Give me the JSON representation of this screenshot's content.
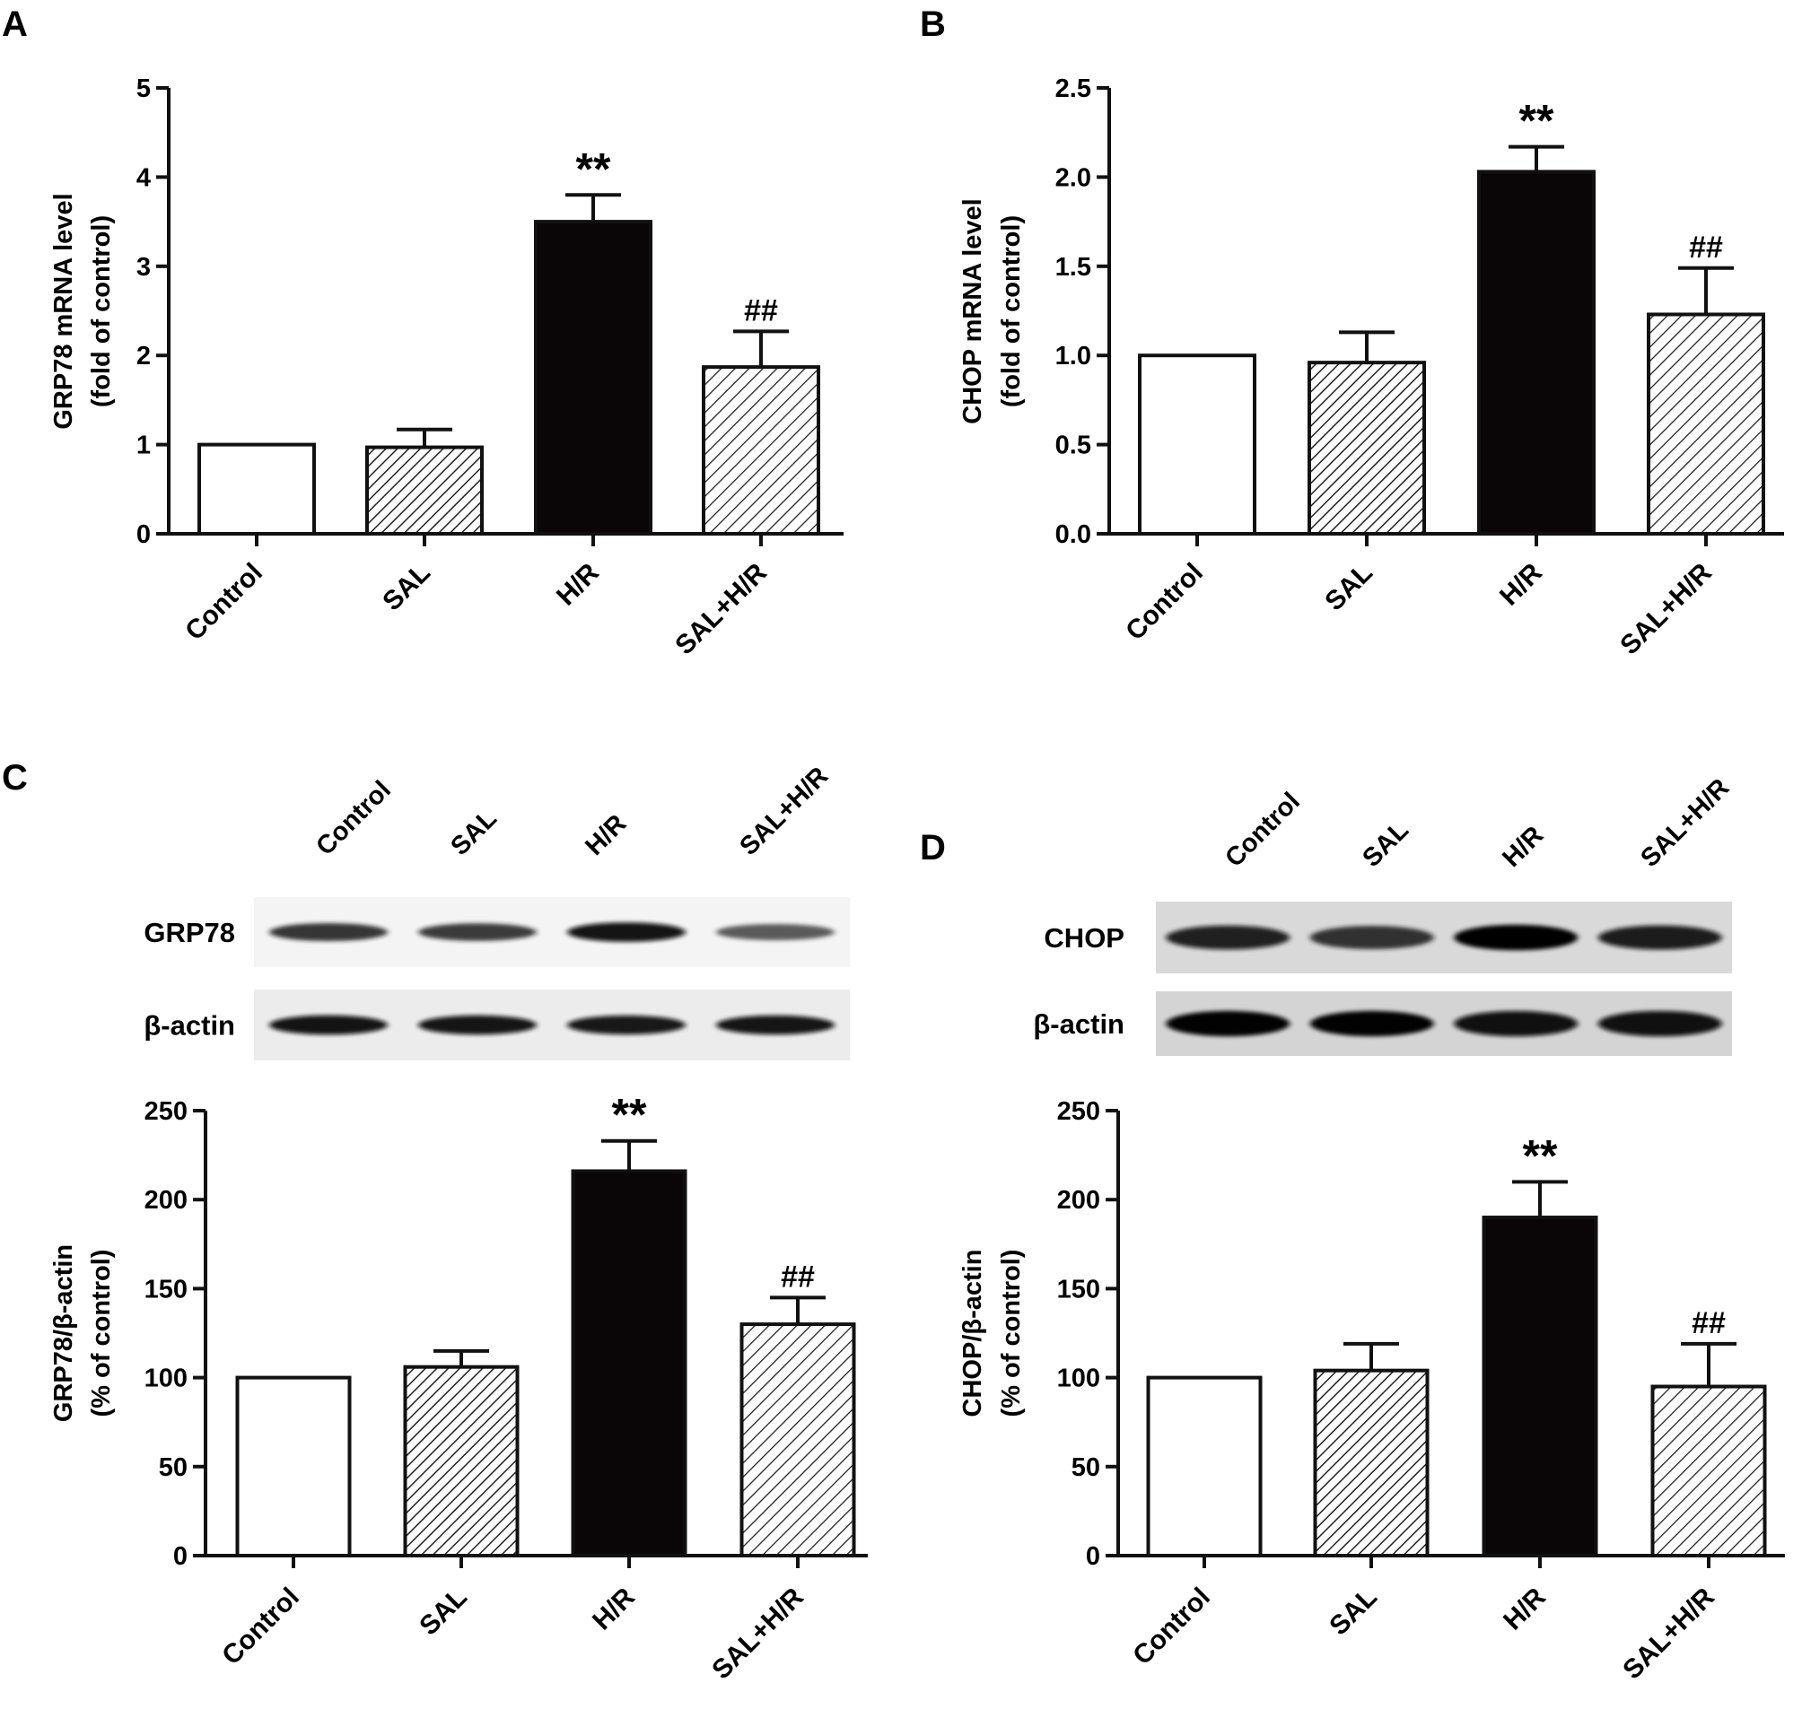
{
  "figure": {
    "background": "#ffffff",
    "colors": {
      "axis": "#111111",
      "bar_solid": "#0a0608",
      "bar_white": "#ffffff",
      "hatch": "#222222"
    },
    "bar_styles": [
      "open",
      "hatch-dense",
      "solid",
      "hatch-sparse"
    ]
  },
  "chart_data": [
    {
      "panel": "A",
      "type": "bar",
      "categories": [
        "Control",
        "SAL",
        "H/R",
        "SAL+H/R"
      ],
      "values": [
        1.0,
        0.97,
        3.5,
        1.87
      ],
      "errors": [
        0,
        0.2,
        0.3,
        0.4
      ],
      "significance": [
        "",
        "",
        "**",
        "##"
      ],
      "ylabel_line1": "GRP78 mRNA level",
      "ylabel_line2": "(fold of control)",
      "ylim": [
        0,
        5
      ],
      "yticks": [
        "0",
        "1",
        "2",
        "3",
        "4",
        "5"
      ]
    },
    {
      "panel": "B",
      "type": "bar",
      "categories": [
        "Control",
        "SAL",
        "H/R",
        "SAL+H/R"
      ],
      "values": [
        1.0,
        0.96,
        2.03,
        1.23
      ],
      "errors": [
        0,
        0.17,
        0.14,
        0.26
      ],
      "significance": [
        "",
        "",
        "**",
        "##"
      ],
      "ylabel_line1": "CHOP mRNA level",
      "ylabel_line2": "(fold of control)",
      "ylim": [
        0,
        2.5
      ],
      "yticks": [
        "0.0",
        "0.5",
        "1.0",
        "1.5",
        "2.0",
        "2.5"
      ]
    },
    {
      "panel": "C",
      "type": "bar",
      "categories": [
        "Control",
        "SAL",
        "H/R",
        "SAL+H/R"
      ],
      "values": [
        100,
        106,
        216,
        130
      ],
      "errors": [
        0,
        9,
        17,
        15
      ],
      "significance": [
        "",
        "",
        "**",
        "##"
      ],
      "ylabel_line1": "GRP78/β-actin",
      "ylabel_line2": "(% of control)",
      "ylim": [
        0,
        250
      ],
      "yticks": [
        "0",
        "50",
        "100",
        "150",
        "200",
        "250"
      ]
    },
    {
      "panel": "D",
      "type": "bar",
      "categories": [
        "Control",
        "SAL",
        "H/R",
        "SAL+H/R"
      ],
      "values": [
        100,
        104,
        190,
        95
      ],
      "errors": [
        0,
        15,
        20,
        24
      ],
      "significance": [
        "",
        "",
        "**",
        "##"
      ],
      "ylabel_line1": "CHOP/β-actin",
      "ylabel_line2": "(% of control)",
      "ylim": [
        0,
        250
      ],
      "yticks": [
        "0",
        "50",
        "100",
        "150",
        "200",
        "250"
      ]
    }
  ],
  "blots": [
    {
      "panel": "C",
      "lanes": [
        "Control",
        "SAL",
        "H/R",
        "SAL+H/R"
      ],
      "rows": [
        {
          "label": "GRP78",
          "intensities": [
            0.75,
            0.7,
            0.95,
            0.5
          ],
          "background": "#f4f4f4"
        },
        {
          "label": "β-actin",
          "intensities": [
            0.95,
            0.93,
            0.9,
            0.92
          ],
          "background": "#ececec"
        }
      ]
    },
    {
      "panel": "D",
      "lanes": [
        "Control",
        "SAL",
        "H/R",
        "SAL+H/R"
      ],
      "rows": [
        {
          "label": "CHOP",
          "intensities": [
            0.82,
            0.75,
            1.0,
            0.85
          ],
          "background": "#d9d9d9"
        },
        {
          "label": "β-actin",
          "intensities": [
            0.98,
            0.98,
            0.96,
            0.97
          ],
          "background": "#d4d4d4"
        }
      ]
    }
  ]
}
